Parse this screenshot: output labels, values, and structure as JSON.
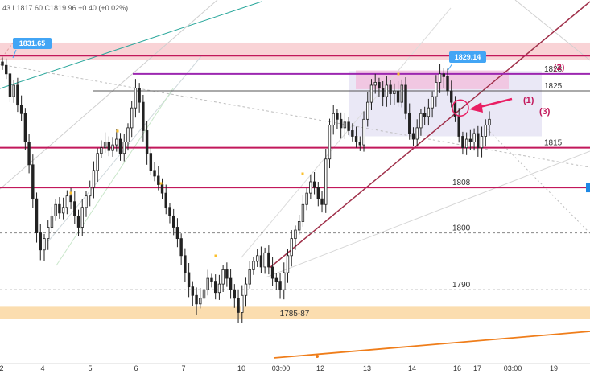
{
  "ohlc_header": "43 L1817.60 C1819.96 +0.40 (+0.02%)",
  "chart_data": {
    "type": "candlestick",
    "x_ticks": [
      "2",
      "4",
      "5",
      "6",
      "7",
      "10",
      "03:00",
      "12",
      "13",
      "14",
      "16",
      "17",
      "03:00",
      "19"
    ],
    "ylim": [
      1777,
      1841
    ],
    "zones": [
      {
        "name": "resistance-zone",
        "from": 1830.5,
        "to": 1833.5,
        "color": "#f8c8cc"
      },
      {
        "name": "support-zone-1785-87",
        "label": "1785-87",
        "from": 1784.8,
        "to": 1787.0,
        "color": "#fbd9a6"
      },
      {
        "name": "consolidation-zone",
        "from": 1817.0,
        "to": 1828.5,
        "color": "#e6e4f4"
      },
      {
        "name": "top-zone",
        "from": 1825.3,
        "to": 1828.6,
        "color": "#f2c3e0"
      }
    ],
    "levels": [
      {
        "name": "level-1831",
        "value": 1831.2,
        "color": "#c2185b",
        "width": 2,
        "label": ""
      },
      {
        "name": "level-1828",
        "value": 1828,
        "color": "#9c27b0",
        "width": 2,
        "label": "1828"
      },
      {
        "name": "level-1825",
        "value": 1825,
        "color": "#555555",
        "width": 1,
        "label": "1825"
      },
      {
        "name": "level-1815",
        "value": 1815,
        "color": "#c2185b",
        "width": 2,
        "label": "1815"
      },
      {
        "name": "level-1808",
        "value": 1808,
        "color": "#c2185b",
        "width": 2,
        "label": "1808"
      },
      {
        "name": "level-1800",
        "value": 1800,
        "color": "#888888",
        "width": 1,
        "dashed": true,
        "label": "1800"
      },
      {
        "name": "level-1790",
        "value": 1790,
        "color": "#888888",
        "width": 1,
        "dashed": true,
        "label": "1790"
      }
    ],
    "callouts": [
      {
        "name": "high-callout-1831",
        "label": "1831.65",
        "color": "#42a5f5"
      },
      {
        "name": "high-callout-1829",
        "label": "1829.14",
        "color": "#42a5f5"
      }
    ],
    "annotations": [
      {
        "name": "annotation-1",
        "label": "(1)"
      },
      {
        "name": "annotation-2",
        "label": "(2)"
      },
      {
        "name": "annotation-3",
        "label": "(3)"
      }
    ],
    "closes": [
      1829.5,
      1828.0,
      1824.0,
      1826.0,
      1822.5,
      1821.0,
      1816.0,
      1812.0,
      1806.0,
      1800.0,
      1797.0,
      1799.0,
      1801.0,
      1803.0,
      1805.0,
      1803.5,
      1804.5,
      1806.5,
      1805.5,
      1803.0,
      1801.0,
      1804.5,
      1806.5,
      1808.0,
      1811.0,
      1814.0,
      1815.0,
      1816.0,
      1814.5,
      1815.5,
      1816.5,
      1814.0,
      1816.0,
      1818.5,
      1822.0,
      1825.5,
      1823.0,
      1818.0,
      1814.0,
      1811.0,
      1810.0,
      1808.5,
      1807.0,
      1804.5,
      1803.0,
      1801.0,
      1799.0,
      1796.0,
      1793.0,
      1790.5,
      1789.0,
      1787.5,
      1788.5,
      1790.0,
      1792.0,
      1791.5,
      1789.5,
      1791.0,
      1793.5,
      1792.0,
      1790.0,
      1788.5,
      1786.0,
      1789.0,
      1791.0,
      1793.5,
      1795.0,
      1796.0,
      1794.0,
      1796.5,
      1794.0,
      1792.0,
      1791.5,
      1790.0,
      1793.0,
      1796.0,
      1799.0,
      1800.5,
      1802.0,
      1805.0,
      1807.0,
      1809.0,
      1808.0,
      1806.0,
      1805.0,
      1813.0,
      1819.0,
      1821.0,
      1820.0,
      1818.5,
      1819.5,
      1818.0,
      1817.0,
      1816.0,
      1815.5,
      1820.0,
      1823.0,
      1826.0,
      1826.5,
      1825.5,
      1824.0,
      1826.0,
      1824.5,
      1825.0,
      1823.0,
      1826.0,
      1821.0,
      1817.5,
      1816.5,
      1818.5,
      1821.0,
      1820.5,
      1822.0,
      1824.0,
      1826.5,
      1828.0,
      1827.5,
      1825.0,
      1823.0,
      1820.5,
      1817.0,
      1815.0,
      1816.5,
      1816.0,
      1817.5,
      1815.0,
      1817.0,
      1819.0,
      1820.0
    ],
    "arrow": {
      "from_label": "(1)",
      "to_value": 1822
    }
  }
}
